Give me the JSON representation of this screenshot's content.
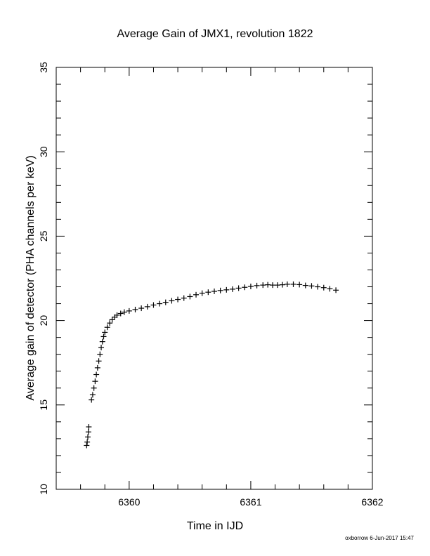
{
  "chart_data": {
    "type": "scatter",
    "title": "Average Gain of JMX1, revolution 1822",
    "xlabel": "Time in IJD",
    "ylabel": "Average gain of detector (PHA channels per keV)",
    "xlim": [
      6359.4,
      6362.0
    ],
    "ylim": [
      10,
      35
    ],
    "xticks": [
      6360,
      6361,
      6362
    ],
    "yticks": [
      10,
      15,
      20,
      25,
      30,
      35
    ],
    "marker": "plus",
    "grid": false,
    "points": [
      [
        6359.65,
        12.6
      ],
      [
        6359.655,
        12.8
      ],
      [
        6359.66,
        13.1
      ],
      [
        6359.665,
        13.4
      ],
      [
        6359.668,
        13.7
      ],
      [
        6359.69,
        15.3
      ],
      [
        6359.7,
        15.6
      ],
      [
        6359.71,
        16.0
      ],
      [
        6359.72,
        16.4
      ],
      [
        6359.73,
        16.8
      ],
      [
        6359.74,
        17.2
      ],
      [
        6359.75,
        17.6
      ],
      [
        6359.76,
        18.0
      ],
      [
        6359.77,
        18.4
      ],
      [
        6359.78,
        18.75
      ],
      [
        6359.79,
        19.05
      ],
      [
        6359.8,
        19.3
      ],
      [
        6359.82,
        19.6
      ],
      [
        6359.84,
        19.85
      ],
      [
        6359.86,
        20.05
      ],
      [
        6359.88,
        20.2
      ],
      [
        6359.9,
        20.32
      ],
      [
        6359.93,
        20.42
      ],
      [
        6359.96,
        20.5
      ],
      [
        6360.0,
        20.57
      ],
      [
        6360.05,
        20.65
      ],
      [
        6360.1,
        20.73
      ],
      [
        6360.15,
        20.82
      ],
      [
        6360.2,
        20.92
      ],
      [
        6360.25,
        21.0
      ],
      [
        6360.3,
        21.08
      ],
      [
        6360.35,
        21.17
      ],
      [
        6360.4,
        21.25
      ],
      [
        6360.45,
        21.33
      ],
      [
        6360.5,
        21.42
      ],
      [
        6360.55,
        21.53
      ],
      [
        6360.6,
        21.62
      ],
      [
        6360.65,
        21.68
      ],
      [
        6360.7,
        21.73
      ],
      [
        6360.75,
        21.78
      ],
      [
        6360.8,
        21.82
      ],
      [
        6360.85,
        21.86
      ],
      [
        6360.9,
        21.92
      ],
      [
        6360.95,
        21.97
      ],
      [
        6361.0,
        22.02
      ],
      [
        6361.05,
        22.07
      ],
      [
        6361.1,
        22.1
      ],
      [
        6361.14,
        22.12
      ],
      [
        6361.18,
        22.1
      ],
      [
        6361.22,
        22.1
      ],
      [
        6361.26,
        22.12
      ],
      [
        6361.3,
        22.15
      ],
      [
        6361.35,
        22.15
      ],
      [
        6361.4,
        22.13
      ],
      [
        6361.45,
        22.08
      ],
      [
        6361.5,
        22.05
      ],
      [
        6361.55,
        22.0
      ],
      [
        6361.6,
        21.95
      ],
      [
        6361.65,
        21.88
      ],
      [
        6361.7,
        21.8
      ]
    ]
  },
  "footer": {
    "stamp": "oxborrow  6-Jun-2017 15:47"
  }
}
